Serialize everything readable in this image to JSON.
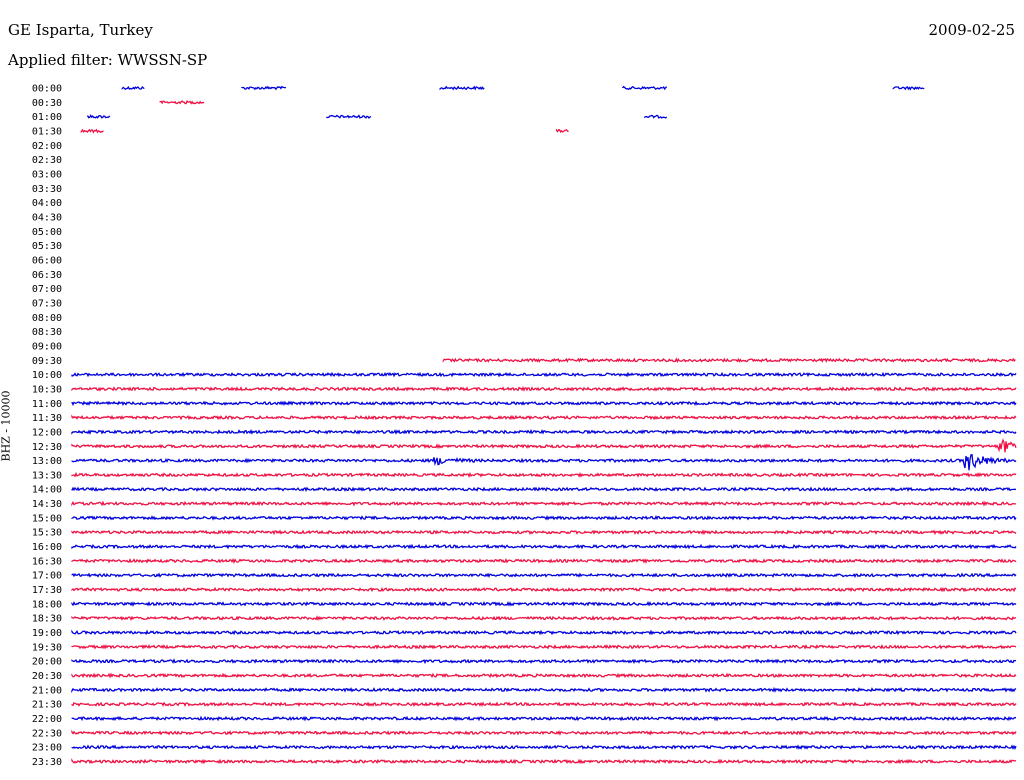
{
  "header": {
    "station": "GE Isparta, Turkey",
    "date": "2009-02-25",
    "filter": "Applied filter: WWSSN-SP"
  },
  "channel_label": "BHZ - 10000",
  "colors": {
    "odd_trace": "#0000dd",
    "even_trace": "#ee1144"
  },
  "chart_data": {
    "type": "line",
    "title": "GE Isparta, Turkey",
    "subtitle": "Applied filter: WWSSN-SP",
    "ylabel": "BHZ - 10000",
    "x": "minutes within each 30-minute line",
    "xlim": [
      0,
      30
    ],
    "grid": false,
    "legend": "none",
    "row_labels": [
      "00:00",
      "00:30",
      "01:00",
      "01:30",
      "02:00",
      "02:30",
      "03:00",
      "03:30",
      "04:00",
      "04:30",
      "05:00",
      "05:30",
      "06:00",
      "06:30",
      "07:00",
      "07:30",
      "08:00",
      "08:30",
      "09:00",
      "09:30",
      "10:00",
      "10:30",
      "11:00",
      "11:30",
      "12:00",
      "12:30",
      "13:00",
      "13:30",
      "14:00",
      "14:30",
      "15:00",
      "15:30",
      "16:00",
      "16:30",
      "17:00",
      "17:30",
      "18:00",
      "18:30",
      "19:00",
      "19:30",
      "20:00",
      "20:30",
      "21:00",
      "21:30",
      "22:00",
      "22:30",
      "23:00",
      "23:30"
    ],
    "segments": [
      {
        "row": "00:00",
        "start": 1.6,
        "end": 2.3
      },
      {
        "row": "00:00",
        "start": 5.4,
        "end": 6.8
      },
      {
        "row": "00:00",
        "start": 11.7,
        "end": 13.1
      },
      {
        "row": "00:00",
        "start": 17.5,
        "end": 18.9
      },
      {
        "row": "00:00",
        "start": 26.1,
        "end": 27.1
      },
      {
        "row": "00:30",
        "start": 2.8,
        "end": 4.2
      },
      {
        "row": "01:00",
        "start": 0.5,
        "end": 1.2
      },
      {
        "row": "01:00",
        "start": 8.1,
        "end": 9.5
      },
      {
        "row": "01:00",
        "start": 18.2,
        "end": 18.9
      },
      {
        "row": "01:30",
        "start": 0.3,
        "end": 1.0
      },
      {
        "row": "01:30",
        "start": 15.4,
        "end": 15.8
      },
      {
        "row": "09:30",
        "start": 11.8,
        "end": 30
      },
      {
        "row": "10:00",
        "start": 0,
        "end": 30
      },
      {
        "row": "10:30",
        "start": 0,
        "end": 30
      },
      {
        "row": "11:00",
        "start": 0,
        "end": 30
      },
      {
        "row": "11:30",
        "start": 0,
        "end": 30
      },
      {
        "row": "12:00",
        "start": 0,
        "end": 30
      },
      {
        "row": "12:30",
        "start": 0,
        "end": 30
      },
      {
        "row": "13:00",
        "start": 0,
        "end": 30
      },
      {
        "row": "13:30",
        "start": 0,
        "end": 30
      },
      {
        "row": "14:00",
        "start": 0,
        "end": 30
      },
      {
        "row": "14:30",
        "start": 0,
        "end": 30
      },
      {
        "row": "15:00",
        "start": 0,
        "end": 30
      },
      {
        "row": "15:30",
        "start": 0,
        "end": 30
      },
      {
        "row": "16:00",
        "start": 0,
        "end": 30
      },
      {
        "row": "16:30",
        "start": 0,
        "end": 30
      },
      {
        "row": "17:00",
        "start": 0,
        "end": 30
      },
      {
        "row": "17:30",
        "start": 0,
        "end": 30
      },
      {
        "row": "18:00",
        "start": 0,
        "end": 30
      },
      {
        "row": "18:30",
        "start": 0,
        "end": 30
      },
      {
        "row": "19:00",
        "start": 0,
        "end": 30
      },
      {
        "row": "19:30",
        "start": 0,
        "end": 30
      },
      {
        "row": "20:00",
        "start": 0,
        "end": 30
      },
      {
        "row": "20:30",
        "start": 0,
        "end": 30
      },
      {
        "row": "21:00",
        "start": 0,
        "end": 30
      },
      {
        "row": "21:30",
        "start": 0,
        "end": 30
      },
      {
        "row": "22:00",
        "start": 0,
        "end": 30
      },
      {
        "row": "22:30",
        "start": 0,
        "end": 30
      },
      {
        "row": "23:00",
        "start": 0,
        "end": 30
      },
      {
        "row": "23:30",
        "start": 0,
        "end": 30
      }
    ],
    "events": [
      {
        "row": "13:00",
        "time": 11.6,
        "amplitude": 1.5
      },
      {
        "row": "12:30",
        "time": 29.6,
        "amplitude": 2.5
      },
      {
        "row": "13:00",
        "time": 28.5,
        "amplitude": 4.0
      }
    ]
  }
}
